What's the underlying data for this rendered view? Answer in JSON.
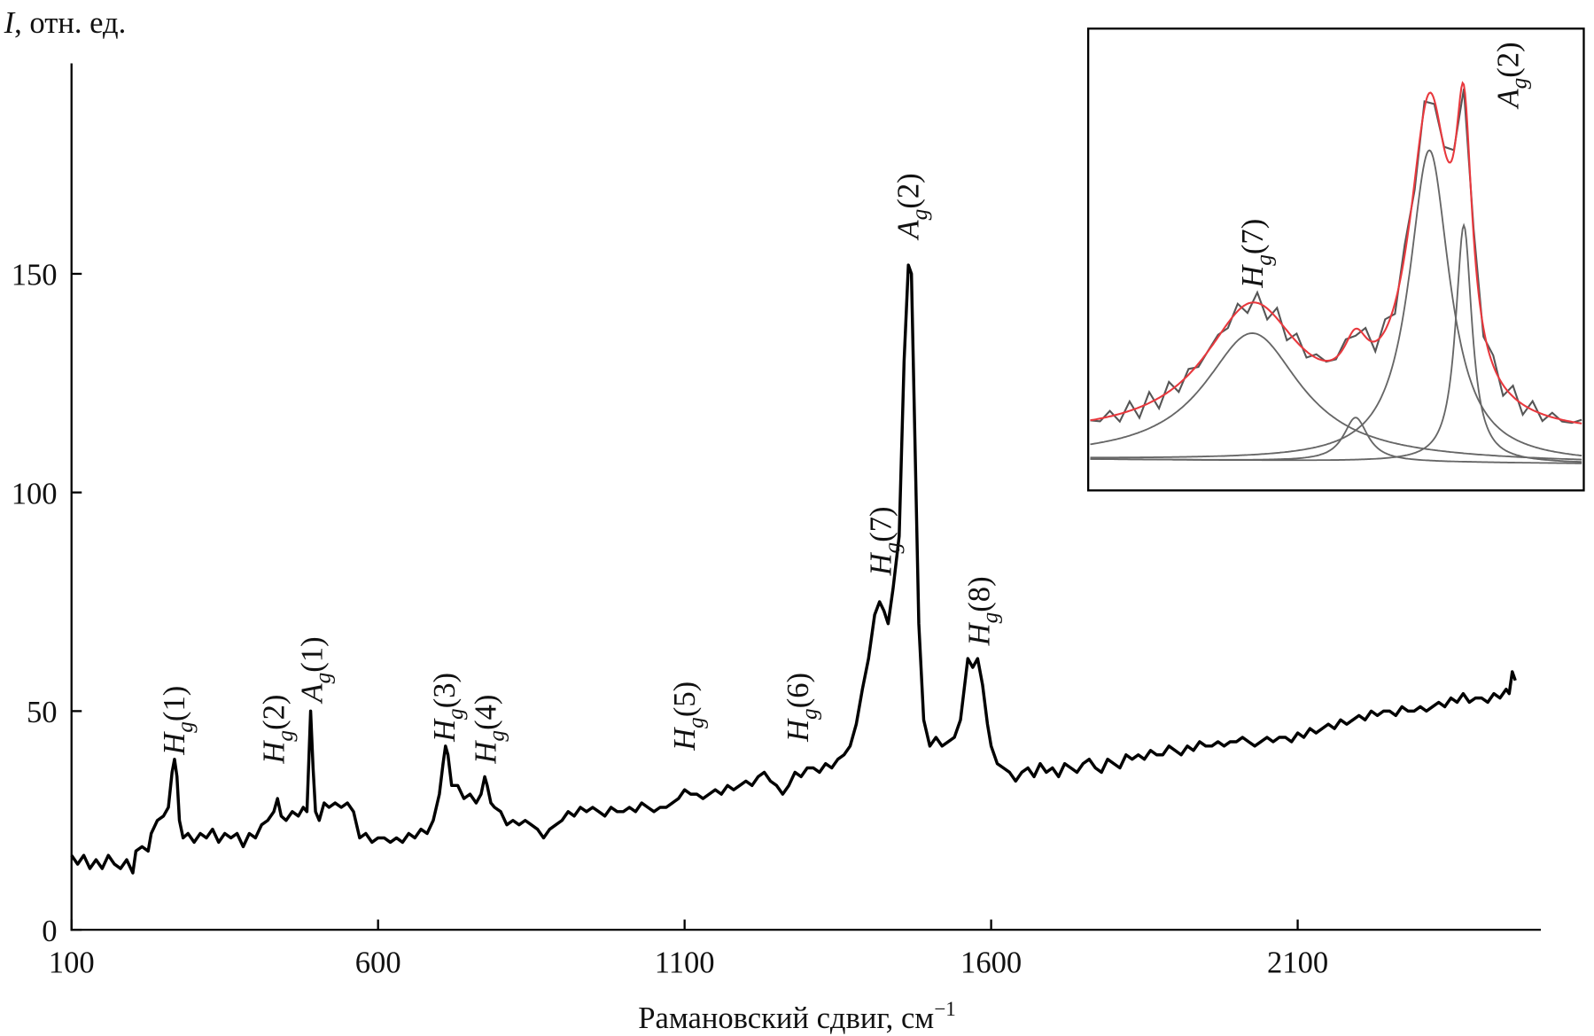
{
  "chart_data": {
    "type": "line",
    "ylabel_italic": "I",
    "ylabel_rest": ", отн. ед.",
    "xlabel": "Рамановский сдвиг, см",
    "xlabel_sup": "−1",
    "xlim": [
      100,
      2497
    ],
    "ylim": [
      0,
      198
    ],
    "xticks": [
      100,
      600,
      1100,
      1600,
      2100
    ],
    "yticks": [
      0,
      50,
      100,
      150
    ],
    "line_color": "#000000",
    "series": [
      {
        "name": "spectrum",
        "points": [
          [
            100,
            17
          ],
          [
            110,
            15
          ],
          [
            120,
            17
          ],
          [
            130,
            14
          ],
          [
            140,
            16
          ],
          [
            150,
            14
          ],
          [
            160,
            17
          ],
          [
            170,
            15
          ],
          [
            180,
            14
          ],
          [
            190,
            16
          ],
          [
            200,
            13
          ],
          [
            205,
            18
          ],
          [
            215,
            19
          ],
          [
            225,
            18
          ],
          [
            230,
            22
          ],
          [
            240,
            25
          ],
          [
            250,
            26
          ],
          [
            258,
            28
          ],
          [
            264,
            36
          ],
          [
            268,
            39
          ],
          [
            272,
            35
          ],
          [
            276,
            25
          ],
          [
            282,
            21
          ],
          [
            290,
            22
          ],
          [
            300,
            20
          ],
          [
            310,
            22
          ],
          [
            320,
            21
          ],
          [
            330,
            23
          ],
          [
            340,
            20
          ],
          [
            350,
            22
          ],
          [
            360,
            21
          ],
          [
            370,
            22
          ],
          [
            380,
            19
          ],
          [
            390,
            22
          ],
          [
            400,
            21
          ],
          [
            410,
            24
          ],
          [
            420,
            25
          ],
          [
            430,
            27
          ],
          [
            436,
            30
          ],
          [
            442,
            26
          ],
          [
            450,
            25
          ],
          [
            460,
            27
          ],
          [
            470,
            26
          ],
          [
            478,
            28
          ],
          [
            484,
            27
          ],
          [
            490,
            50
          ],
          [
            494,
            37
          ],
          [
            498,
            27
          ],
          [
            504,
            25
          ],
          [
            512,
            29
          ],
          [
            520,
            28
          ],
          [
            530,
            29
          ],
          [
            540,
            28
          ],
          [
            550,
            29
          ],
          [
            560,
            27
          ],
          [
            565,
            24
          ],
          [
            570,
            21
          ],
          [
            580,
            22
          ],
          [
            590,
            20
          ],
          [
            600,
            21
          ],
          [
            610,
            21
          ],
          [
            620,
            20
          ],
          [
            630,
            21
          ],
          [
            640,
            20
          ],
          [
            650,
            22
          ],
          [
            660,
            21
          ],
          [
            670,
            23
          ],
          [
            680,
            22
          ],
          [
            690,
            25
          ],
          [
            700,
            31
          ],
          [
            706,
            38
          ],
          [
            710,
            42
          ],
          [
            714,
            40
          ],
          [
            720,
            33
          ],
          [
            730,
            33
          ],
          [
            740,
            30
          ],
          [
            750,
            31
          ],
          [
            760,
            29
          ],
          [
            768,
            31
          ],
          [
            774,
            35
          ],
          [
            778,
            33
          ],
          [
            784,
            29
          ],
          [
            790,
            28
          ],
          [
            800,
            27
          ],
          [
            810,
            24
          ],
          [
            820,
            25
          ],
          [
            830,
            24
          ],
          [
            840,
            25
          ],
          [
            850,
            24
          ],
          [
            860,
            23
          ],
          [
            870,
            21
          ],
          [
            880,
            23
          ],
          [
            890,
            24
          ],
          [
            900,
            25
          ],
          [
            910,
            27
          ],
          [
            920,
            26
          ],
          [
            930,
            28
          ],
          [
            940,
            27
          ],
          [
            950,
            28
          ],
          [
            960,
            27
          ],
          [
            970,
            26
          ],
          [
            980,
            28
          ],
          [
            990,
            27
          ],
          [
            1000,
            27
          ],
          [
            1010,
            28
          ],
          [
            1020,
            27
          ],
          [
            1030,
            29
          ],
          [
            1040,
            28
          ],
          [
            1050,
            27
          ],
          [
            1060,
            28
          ],
          [
            1070,
            28
          ],
          [
            1080,
            29
          ],
          [
            1090,
            30
          ],
          [
            1100,
            32
          ],
          [
            1110,
            31
          ],
          [
            1120,
            31
          ],
          [
            1130,
            30
          ],
          [
            1140,
            31
          ],
          [
            1150,
            32
          ],
          [
            1160,
            31
          ],
          [
            1170,
            33
          ],
          [
            1180,
            32
          ],
          [
            1190,
            33
          ],
          [
            1200,
            34
          ],
          [
            1210,
            33
          ],
          [
            1220,
            35
          ],
          [
            1230,
            36
          ],
          [
            1240,
            34
          ],
          [
            1250,
            33
          ],
          [
            1260,
            31
          ],
          [
            1270,
            33
          ],
          [
            1280,
            36
          ],
          [
            1290,
            35
          ],
          [
            1300,
            37
          ],
          [
            1310,
            37
          ],
          [
            1320,
            36
          ],
          [
            1330,
            38
          ],
          [
            1340,
            37
          ],
          [
            1350,
            39
          ],
          [
            1360,
            40
          ],
          [
            1370,
            42
          ],
          [
            1380,
            47
          ],
          [
            1390,
            55
          ],
          [
            1400,
            62
          ],
          [
            1410,
            72
          ],
          [
            1418,
            75
          ],
          [
            1425,
            73
          ],
          [
            1432,
            70
          ],
          [
            1440,
            78
          ],
          [
            1450,
            90
          ],
          [
            1458,
            130
          ],
          [
            1465,
            152
          ],
          [
            1470,
            150
          ],
          [
            1476,
            110
          ],
          [
            1482,
            70
          ],
          [
            1490,
            48
          ],
          [
            1500,
            42
          ],
          [
            1510,
            44
          ],
          [
            1520,
            42
          ],
          [
            1530,
            43
          ],
          [
            1540,
            44
          ],
          [
            1550,
            48
          ],
          [
            1556,
            55
          ],
          [
            1562,
            62
          ],
          [
            1570,
            60
          ],
          [
            1578,
            62
          ],
          [
            1586,
            56
          ],
          [
            1594,
            47
          ],
          [
            1600,
            42
          ],
          [
            1610,
            38
          ],
          [
            1620,
            37
          ],
          [
            1630,
            36
          ],
          [
            1640,
            34
          ],
          [
            1650,
            36
          ],
          [
            1660,
            37
          ],
          [
            1670,
            35
          ],
          [
            1680,
            38
          ],
          [
            1690,
            36
          ],
          [
            1700,
            37
          ],
          [
            1710,
            35
          ],
          [
            1720,
            38
          ],
          [
            1730,
            37
          ],
          [
            1740,
            36
          ],
          [
            1750,
            38
          ],
          [
            1760,
            39
          ],
          [
            1770,
            37
          ],
          [
            1780,
            36
          ],
          [
            1790,
            39
          ],
          [
            1800,
            38
          ],
          [
            1810,
            37
          ],
          [
            1820,
            40
          ],
          [
            1830,
            39
          ],
          [
            1840,
            40
          ],
          [
            1850,
            39
          ],
          [
            1860,
            41
          ],
          [
            1870,
            40
          ],
          [
            1880,
            40
          ],
          [
            1890,
            42
          ],
          [
            1900,
            41
          ],
          [
            1910,
            40
          ],
          [
            1920,
            42
          ],
          [
            1930,
            41
          ],
          [
            1940,
            43
          ],
          [
            1950,
            42
          ],
          [
            1960,
            42
          ],
          [
            1970,
            43
          ],
          [
            1980,
            42
          ],
          [
            1990,
            43
          ],
          [
            2000,
            43
          ],
          [
            2010,
            44
          ],
          [
            2020,
            43
          ],
          [
            2030,
            42
          ],
          [
            2040,
            43
          ],
          [
            2050,
            44
          ],
          [
            2060,
            43
          ],
          [
            2070,
            44
          ],
          [
            2080,
            44
          ],
          [
            2090,
            43
          ],
          [
            2100,
            45
          ],
          [
            2110,
            44
          ],
          [
            2120,
            46
          ],
          [
            2130,
            45
          ],
          [
            2140,
            46
          ],
          [
            2150,
            47
          ],
          [
            2160,
            46
          ],
          [
            2170,
            48
          ],
          [
            2180,
            47
          ],
          [
            2190,
            48
          ],
          [
            2200,
            49
          ],
          [
            2210,
            48
          ],
          [
            2220,
            50
          ],
          [
            2230,
            49
          ],
          [
            2240,
            50
          ],
          [
            2250,
            50
          ],
          [
            2260,
            49
          ],
          [
            2270,
            51
          ],
          [
            2280,
            50
          ],
          [
            2290,
            50
          ],
          [
            2300,
            51
          ],
          [
            2310,
            50
          ],
          [
            2320,
            51
          ],
          [
            2330,
            52
          ],
          [
            2340,
            51
          ],
          [
            2350,
            53
          ],
          [
            2360,
            52
          ],
          [
            2370,
            54
          ],
          [
            2380,
            52
          ],
          [
            2390,
            53
          ],
          [
            2400,
            53
          ],
          [
            2410,
            52
          ],
          [
            2420,
            54
          ],
          [
            2430,
            53
          ],
          [
            2440,
            55
          ],
          [
            2445,
            54
          ],
          [
            2450,
            59
          ],
          [
            2455,
            57
          ]
        ]
      }
    ],
    "annotations": [
      {
        "sym": "H",
        "sub": "g",
        "num": "(1)",
        "x": 267,
        "y": 40
      },
      {
        "sym": "H",
        "sub": "g",
        "num": "(2)",
        "x": 430,
        "y": 38
      },
      {
        "sym": "A",
        "sub": "g",
        "num": "(1)",
        "x": 492,
        "y": 52
      },
      {
        "sym": "H",
        "sub": "g",
        "num": "(3)",
        "x": 708,
        "y": 43
      },
      {
        "sym": "H",
        "sub": "g",
        "num": "(4)",
        "x": 775,
        "y": 38
      },
      {
        "sym": "H",
        "sub": "g",
        "num": "(5)",
        "x": 1100,
        "y": 41
      },
      {
        "sym": "H",
        "sub": "g",
        "num": "(6)",
        "x": 1285,
        "y": 43
      },
      {
        "sym": "H",
        "sub": "g",
        "num": "(7)",
        "x": 1420,
        "y": 81
      },
      {
        "sym": "A",
        "sub": "g",
        "num": "(2)",
        "x": 1465,
        "y": 158
      },
      {
        "sym": "H",
        "sub": "g",
        "num": "(8)",
        "x": 1580,
        "y": 65
      }
    ],
    "inset": {
      "fit_color": "#e8383d",
      "data_color": "#555555",
      "component_color": "#666666",
      "baseline": 0.02,
      "components": [
        {
          "center": 33,
          "amp": 0.29,
          "hwhm": 12
        },
        {
          "center": 54,
          "amp": 0.1,
          "hwhm": 3
        },
        {
          "center": 69,
          "amp": 0.71,
          "hwhm": 5
        },
        {
          "center": 76,
          "amp": 0.54,
          "hwhm": 2
        }
      ],
      "labels": [
        {
          "sym": "H",
          "sub": "g",
          "num": "(7)",
          "x": 33,
          "y": 0.41
        },
        {
          "sym": "A",
          "sub": "g",
          "num": "(2)",
          "x": 85,
          "y": 0.82
        }
      ]
    }
  }
}
